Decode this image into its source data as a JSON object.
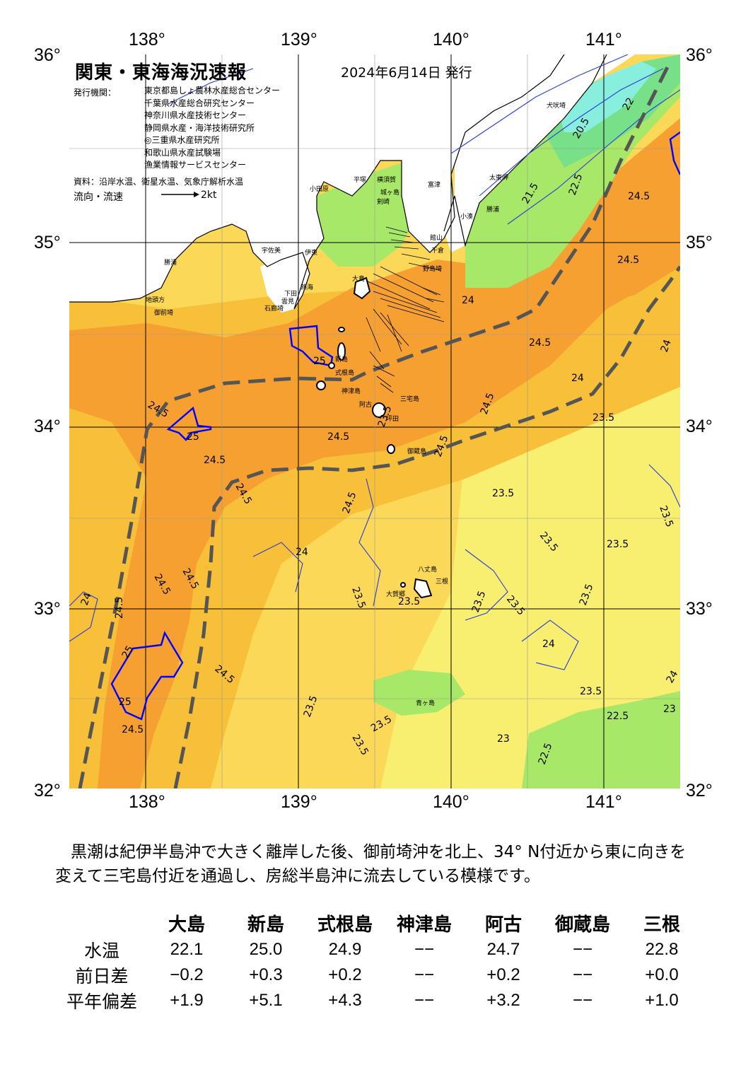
{
  "map": {
    "title": "関東・東海海況速報",
    "issue_date": "2024年6月14日 発行",
    "agency_label": "発行機関：",
    "agencies": [
      "東京都島しょ農林水産総合センター",
      "千葉県水産総合研究センター",
      "神奈川県水産技術センター",
      "静岡県水産・海洋技術研究所",
      "◎三重県水産研究所",
      "和歌山県水産試験場",
      "漁業情報サービスセンター"
    ],
    "source": "資料：沿岸水温、衛星水温、気象庁解析水温",
    "flow_label": "流向・流速",
    "flow_scale": "2kt",
    "lon_labels": [
      "138°",
      "139°",
      "140°",
      "141°"
    ],
    "lat_labels": [
      "36°",
      "35°",
      "34°",
      "33°",
      "32°"
    ],
    "colors": {
      "water_24_5_plus": "#f5a030",
      "water_24": "#f8c038",
      "water_23_5": "#fbd858",
      "water_23": "#f8ee70",
      "water_22_5": "#a8e868",
      "water_22": "#78e088",
      "water_21": "#88eedd",
      "kuroshio_axis": "#555555",
      "isotherm_25": "#0000ff"
    },
    "place_names": [
      "犬吠埼",
      "太東岬",
      "勝浦",
      "小湊",
      "館山",
      "千倉",
      "野島埼",
      "富津",
      "横須賀",
      "城ヶ島",
      "剣崎",
      "平塚",
      "小田原",
      "熱海",
      "伊東",
      "下田",
      "石廊埼",
      "雲見",
      "御前埼",
      "地頭方",
      "勝浦",
      "三重",
      "大島",
      "新島",
      "式根島",
      "神津島",
      "三宅島",
      "阿古",
      "坪田",
      "御蔵島",
      "八丈島",
      "三根",
      "大賀郷",
      "青ヶ島",
      "宇佐美"
    ],
    "isotherm_labels": [
      "20.5",
      "21.5",
      "22",
      "22.5",
      "23",
      "23.5",
      "24",
      "24.5",
      "25"
    ]
  },
  "summary": "黒潮は紀伊半島沖で大きく離岸した後、御前埼沖を北上、34° N付近から東に向きを変えて三宅島付近を通過し、房総半島沖に流去している模様です。",
  "table": {
    "columns": [
      "大島",
      "新島",
      "式根島",
      "神津島",
      "阿古",
      "御蔵島",
      "三根"
    ],
    "rows": [
      {
        "label": "水温",
        "values": [
          "22.1",
          "25.0",
          "24.9",
          "−−",
          "24.7",
          "−−",
          "22.8"
        ]
      },
      {
        "label": "前日差",
        "values": [
          "−0.2",
          "+0.3",
          "+0.2",
          "−−",
          "+0.2",
          "−−",
          "+0.0"
        ]
      },
      {
        "label": "平年偏差",
        "values": [
          "+1.9",
          "+5.1",
          "+4.3",
          "−−",
          "+3.2",
          "−−",
          "+1.0"
        ]
      }
    ]
  }
}
